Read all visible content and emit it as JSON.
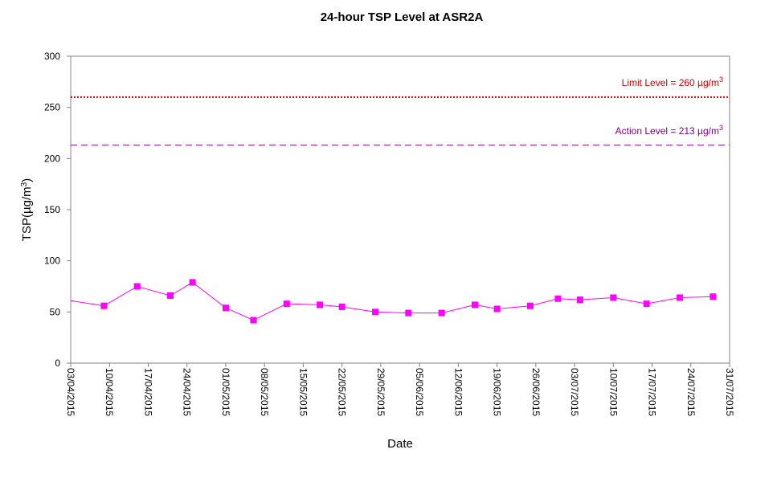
{
  "chart_data": {
    "type": "line",
    "title": "24-hour TSP Level at ASR2A",
    "xlabel": "Date",
    "ylabel": "TSP(µg/m",
    "ylabel_superscript": "3",
    "ylabel_suffix": ")",
    "ylim": [
      0,
      300
    ],
    "yticks": [
      "0",
      "50",
      "100",
      "150",
      "200",
      "250",
      "300"
    ],
    "xlim": [
      "2015-04-03",
      "2015-07-31"
    ],
    "xticks": [
      "03/04/2015",
      "10/04/2015",
      "17/04/2015",
      "24/04/2015",
      "01/05/2015",
      "08/05/2015",
      "15/05/2015",
      "22/05/2015",
      "29/05/2015",
      "05/06/2015",
      "12/06/2015",
      "19/06/2015",
      "26/06/2015",
      "03/07/2015",
      "10/07/2015",
      "17/07/2015",
      "24/07/2015",
      "31/07/2015"
    ],
    "grid": false,
    "legend": "none",
    "colors": {
      "series": "#ff00ff",
      "limit": "#cc0000",
      "action": "#800080",
      "axis": "#808080"
    },
    "reference_lines": [
      {
        "label": "Limit Level  = 260 µg/m",
        "superscript": "3",
        "value": 260,
        "style": "dotted"
      },
      {
        "label": "Action Level  = 213 µg/m",
        "superscript": "3",
        "value": 213,
        "style": "dashed"
      }
    ],
    "series": [
      {
        "x": [
          "2015-04-03",
          "2015-04-09",
          "2015-04-15",
          "2015-04-21",
          "2015-04-25",
          "2015-05-01",
          "2015-05-06",
          "2015-05-12",
          "2015-05-18",
          "2015-05-22",
          "2015-05-28",
          "2015-06-03",
          "2015-06-09",
          "2015-06-15",
          "2015-06-19",
          "2015-06-25",
          "2015-06-30",
          "2015-07-04",
          "2015-07-10",
          "2015-07-16",
          "2015-07-22",
          "2015-07-28"
        ],
        "y": [
          61,
          56,
          75,
          66,
          79,
          54,
          42,
          58,
          57,
          55,
          50,
          49,
          49,
          57,
          53,
          56,
          63,
          62,
          64,
          58,
          64,
          65
        ],
        "markers": [
          false,
          true,
          true,
          true,
          true,
          true,
          true,
          true,
          true,
          true,
          true,
          true,
          true,
          true,
          true,
          true,
          true,
          true,
          true,
          true,
          true,
          true
        ]
      }
    ]
  }
}
